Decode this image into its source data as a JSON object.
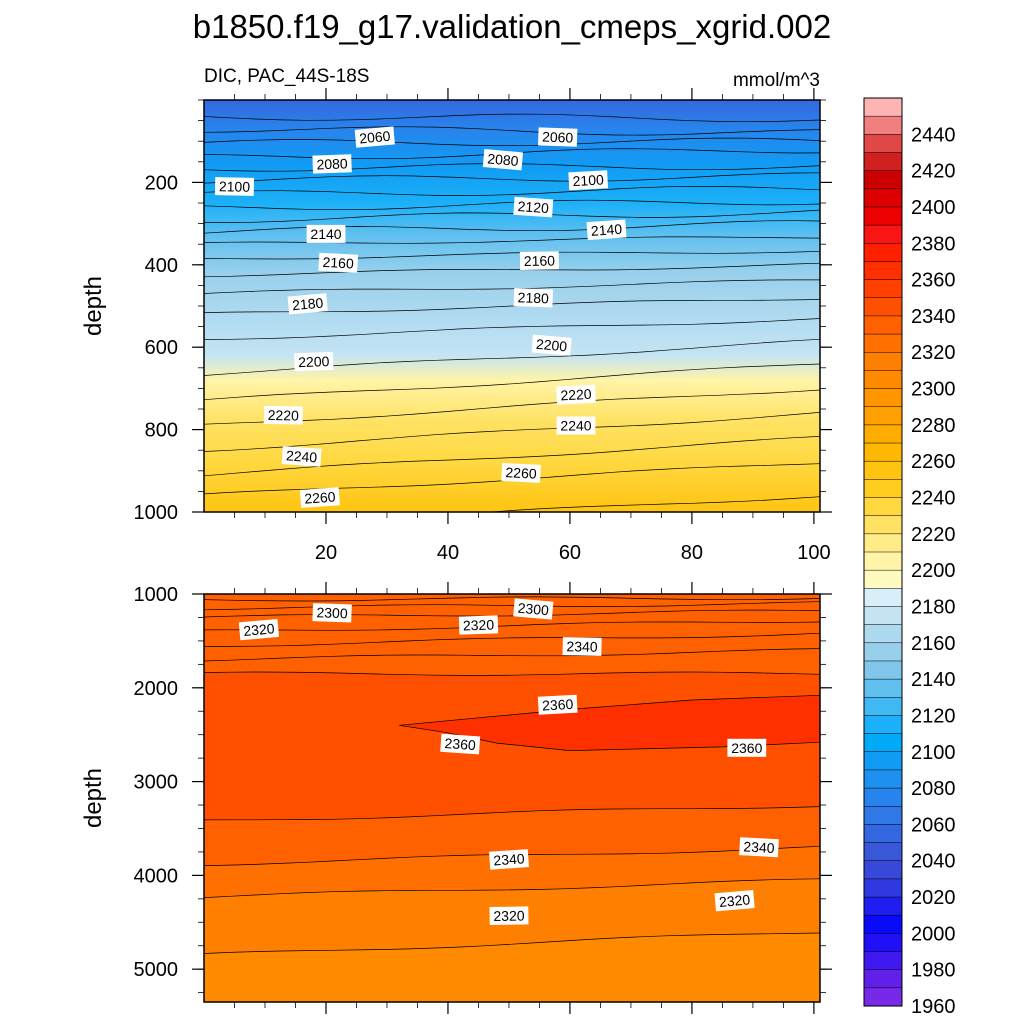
{
  "title": "b1850.f19_g17.validation_cmeps_xgrid.002",
  "subtitle_left": "DIC, PAC_44S-18S",
  "subtitle_right": "mmol/m^3",
  "chart_data": [
    {
      "type": "heatmap",
      "panel": "upper",
      "variable": "DIC",
      "ylabel": "depth",
      "xlim": [
        0,
        101
      ],
      "ylim": [
        1000,
        0
      ],
      "x_ticks": [
        20,
        40,
        60,
        80,
        100
      ],
      "y_ticks": [
        200,
        400,
        600,
        800,
        1000
      ],
      "contour_interval": 10,
      "isolines": [
        {
          "level": 2050,
          "depth": [
            40,
            45
          ]
        },
        {
          "level": 2060,
          "depth": [
            70,
            80
          ]
        },
        {
          "level": 2070,
          "depth": [
            105,
            100
          ]
        },
        {
          "level": 2080,
          "depth": [
            140,
            120
          ]
        },
        {
          "level": 2090,
          "depth": [
            165,
            160
          ]
        },
        {
          "level": 2100,
          "depth": [
            195,
            185
          ]
        },
        {
          "level": 2110,
          "depth": [
            230,
            215
          ]
        },
        {
          "level": 2120,
          "depth": [
            262,
            245
          ]
        },
        {
          "level": 2130,
          "depth": [
            290,
            272
          ]
        },
        {
          "level": 2140,
          "depth": [
            320,
            300
          ]
        },
        {
          "level": 2150,
          "depth": [
            350,
            332
          ]
        },
        {
          "level": 2160,
          "depth": [
            385,
            365
          ]
        },
        {
          "level": 2170,
          "depth": [
            425,
            400
          ]
        },
        {
          "level": 2180,
          "depth": [
            470,
            438
          ]
        },
        {
          "level": 2190,
          "depth": [
            520,
            480
          ]
        },
        {
          "level": 2200,
          "depth": [
            580,
            530
          ]
        },
        {
          "level": 2210,
          "depth": [
            665,
            585
          ]
        },
        {
          "level": 2220,
          "depth": [
            730,
            640
          ]
        },
        {
          "level": 2230,
          "depth": [
            790,
            700
          ]
        },
        {
          "level": 2240,
          "depth": [
            850,
            760
          ]
        },
        {
          "level": 2250,
          "depth": [
            910,
            820
          ]
        },
        {
          "level": 2260,
          "depth": [
            960,
            880
          ]
        },
        {
          "level": 2270,
          "depth": [
            1040,
            960
          ]
        }
      ],
      "contour_labels": [
        {
          "text": "2060",
          "x": 28,
          "depth": 90
        },
        {
          "text": "2060",
          "x": 58,
          "depth": 90
        },
        {
          "text": "2080",
          "x": 21,
          "depth": 155
        },
        {
          "text": "2080",
          "x": 49,
          "depth": 145
        },
        {
          "text": "2100",
          "x": 5,
          "depth": 210
        },
        {
          "text": "2100",
          "x": 63,
          "depth": 195
        },
        {
          "text": "2120",
          "x": 54,
          "depth": 260
        },
        {
          "text": "2140",
          "x": 20,
          "depth": 325
        },
        {
          "text": "2140",
          "x": 66,
          "depth": 315
        },
        {
          "text": "2160",
          "x": 22,
          "depth": 395
        },
        {
          "text": "2160",
          "x": 55,
          "depth": 390
        },
        {
          "text": "2180",
          "x": 17,
          "depth": 495
        },
        {
          "text": "2180",
          "x": 54,
          "depth": 480
        },
        {
          "text": "2200",
          "x": 18,
          "depth": 635
        },
        {
          "text": "2200",
          "x": 57,
          "depth": 595
        },
        {
          "text": "2220",
          "x": 13,
          "depth": 765
        },
        {
          "text": "2220",
          "x": 61,
          "depth": 715
        },
        {
          "text": "2240",
          "x": 16,
          "depth": 865
        },
        {
          "text": "2240",
          "x": 61,
          "depth": 790
        },
        {
          "text": "2260",
          "x": 19,
          "depth": 965
        },
        {
          "text": "2260",
          "x": 52,
          "depth": 905
        }
      ]
    },
    {
      "type": "heatmap",
      "panel": "lower",
      "variable": "DIC",
      "ylabel": "depth",
      "xlim": [
        0,
        101
      ],
      "ylim": [
        5350,
        1000
      ],
      "y_ticks": [
        1000,
        2000,
        3000,
        4000,
        5000
      ],
      "contour_interval": 10,
      "isolines": [
        {
          "level": 2280,
          "depth": [
            1060,
            1040
          ]
        },
        {
          "level": 2290,
          "depth": [
            1150,
            1100
          ]
        },
        {
          "level": 2300,
          "depth": [
            1250,
            1180
          ]
        },
        {
          "level": 2310,
          "depth": [
            1400,
            1280
          ]
        },
        {
          "level": 2320,
          "depth": [
            1550,
            1420
          ]
        },
        {
          "level": 2330,
          "depth": [
            1700,
            1600
          ]
        },
        {
          "level": 2340,
          "depth": [
            1850,
            1850
          ]
        },
        {
          "level": 2340,
          "depth": [
            3420,
            3250
          ]
        },
        {
          "level": 2330,
          "depth": [
            3880,
            3700
          ]
        },
        {
          "level": 2320,
          "depth": [
            4230,
            4050
          ]
        },
        {
          "level": 2310,
          "depth": [
            4850,
            4600
          ]
        }
      ],
      "core_2360": [
        [
          32,
          2400
        ],
        [
          45,
          2320
        ],
        [
          60,
          2230
        ],
        [
          80,
          2130
        ],
        [
          101,
          2080
        ],
        [
          101,
          2580
        ],
        [
          85,
          2630
        ],
        [
          60,
          2670
        ],
        [
          48,
          2590
        ],
        [
          40,
          2480
        ],
        [
          32,
          2400
        ]
      ],
      "contour_labels": [
        {
          "text": "2320",
          "x": 9,
          "depth": 1380
        },
        {
          "text": "2300",
          "x": 21,
          "depth": 1200
        },
        {
          "text": "2320",
          "x": 45,
          "depth": 1330
        },
        {
          "text": "2300",
          "x": 54,
          "depth": 1160
        },
        {
          "text": "2340",
          "x": 62,
          "depth": 1560
        },
        {
          "text": "2360",
          "x": 58,
          "depth": 2180
        },
        {
          "text": "2360",
          "x": 42,
          "depth": 2600
        },
        {
          "text": "2360",
          "x": 89,
          "depth": 2640
        },
        {
          "text": "2340",
          "x": 50,
          "depth": 3830
        },
        {
          "text": "2340",
          "x": 91,
          "depth": 3700
        },
        {
          "text": "2320",
          "x": 50,
          "depth": 4430
        },
        {
          "text": "2320",
          "x": 87,
          "depth": 4270
        }
      ]
    }
  ],
  "colorbar": {
    "labels": [
      "2440",
      "2420",
      "2400",
      "2380",
      "2360",
      "2340",
      "2320",
      "2300",
      "2280",
      "2260",
      "2240",
      "2220",
      "2200",
      "2180",
      "2160",
      "2140",
      "2120",
      "2100",
      "2080",
      "2060",
      "2040",
      "2020",
      "2000",
      "1980",
      "1960"
    ],
    "colors_top_to_bottom": [
      "#FFB4B4",
      "#F08080",
      "#E04848",
      "#D02020",
      "#CC0000",
      "#DC0000",
      "#EC0000",
      "#FA1414",
      "#FF2000",
      "#FF3000",
      "#FF4000",
      "#FF5000",
      "#FF6000",
      "#FF7000",
      "#FF8000",
      "#FF8A00",
      "#FF9600",
      "#FFA000",
      "#FFAC00",
      "#FFB800",
      "#FFC410",
      "#FFCC20",
      "#FFD840",
      "#FFE264",
      "#FFEC88",
      "#FFF4A8",
      "#FFFAC0",
      "#D8EEF8",
      "#C4E4F4",
      "#AEDAF0",
      "#98D0EC",
      "#80C6EA",
      "#60C0F0",
      "#40B8F4",
      "#1CB0F8",
      "#00AAF8",
      "#109CF4",
      "#2090F0",
      "#2884EC",
      "#3078E8",
      "#3468E0",
      "#3858D8",
      "#3848D8",
      "#3038E0",
      "#1E1EF0",
      "#0A0AFA",
      "#2010F8",
      "#4018F0",
      "#6020E8",
      "#7828E8"
    ]
  }
}
